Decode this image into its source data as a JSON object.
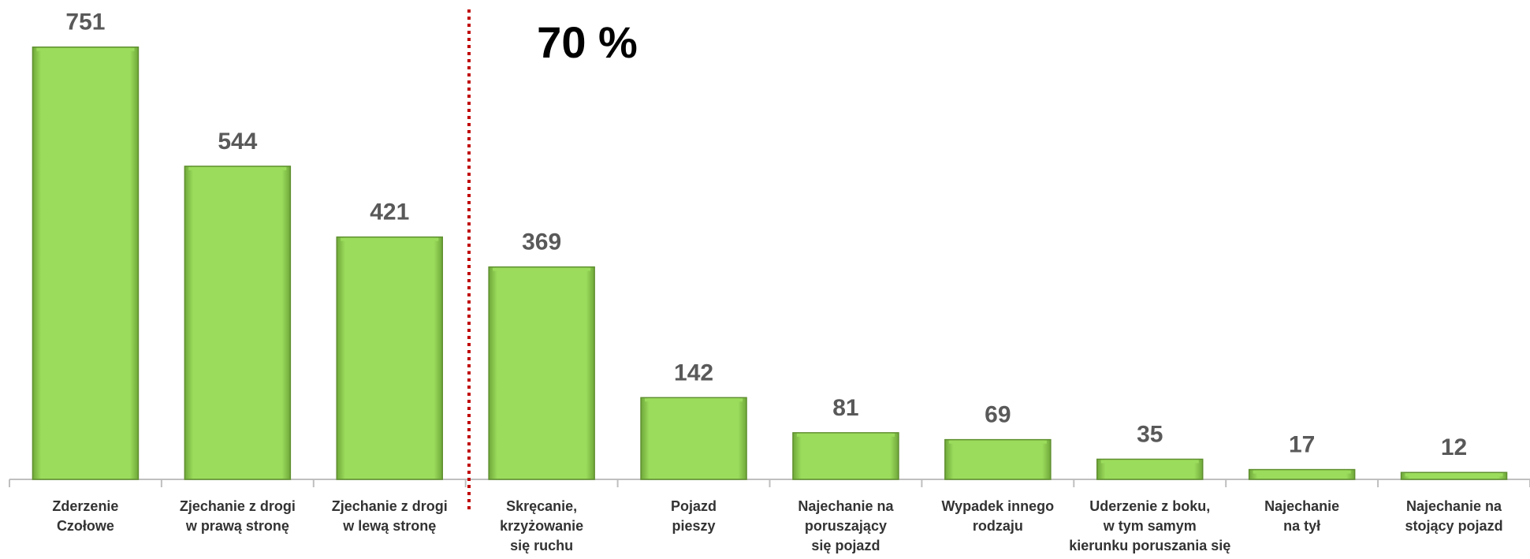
{
  "chart_data": {
    "type": "bar",
    "annotation": "70 %",
    "categories": [
      [
        "Zderzenie",
        "Czołowe"
      ],
      [
        "Zjechanie z drogi",
        "w prawą stronę"
      ],
      [
        "Zjechanie z drogi",
        "w lewą stronę"
      ],
      [
        "Skręcanie,",
        "krzyżowanie",
        "się ruchu"
      ],
      [
        "Pojazd",
        "pieszy"
      ],
      [
        "Najechanie na",
        "poruszający",
        "się pojazd"
      ],
      [
        "Wypadek innego",
        "rodzaju"
      ],
      [
        "Uderzenie z boku,",
        "w tym samym",
        "kierunku poruszania się"
      ],
      [
        "Najechanie",
        "na tył"
      ],
      [
        "Najechanie na",
        "stojący pojazd"
      ]
    ],
    "values": [
      751,
      544,
      421,
      369,
      142,
      81,
      69,
      35,
      17,
      12
    ],
    "color": "#9bdc5c",
    "ylim": [
      0,
      800
    ],
    "grid": false
  }
}
